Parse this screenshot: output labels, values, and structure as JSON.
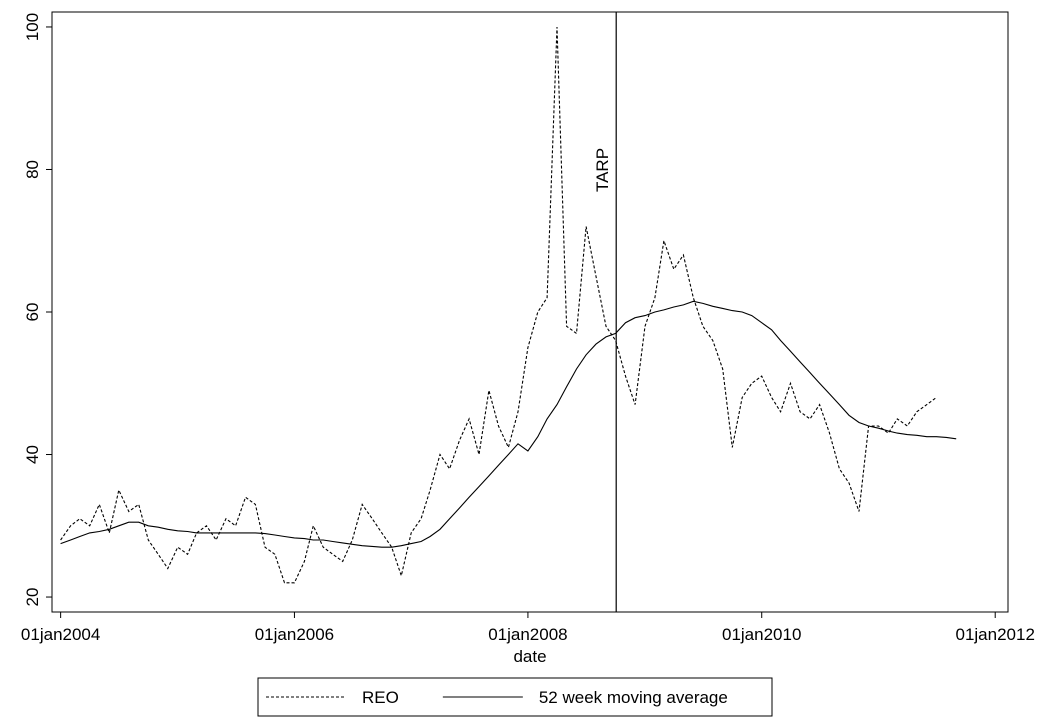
{
  "chart_data": {
    "type": "line",
    "x_label": "date",
    "x": [
      "2004-01-01",
      "2004-02-01",
      "2004-03-01",
      "2004-04-01",
      "2004-05-01",
      "2004-06-01",
      "2004-07-01",
      "2004-08-01",
      "2004-09-01",
      "2004-10-01",
      "2004-11-01",
      "2004-12-01",
      "2005-01-01",
      "2005-02-01",
      "2005-03-01",
      "2005-04-01",
      "2005-05-01",
      "2005-06-01",
      "2005-07-01",
      "2005-08-01",
      "2005-09-01",
      "2005-10-01",
      "2005-11-01",
      "2005-12-01",
      "2006-01-01",
      "2006-02-01",
      "2006-03-01",
      "2006-04-01",
      "2006-05-01",
      "2006-06-01",
      "2006-07-01",
      "2006-08-01",
      "2006-09-01",
      "2006-10-01",
      "2006-11-01",
      "2006-12-01",
      "2007-01-01",
      "2007-02-01",
      "2007-03-01",
      "2007-04-01",
      "2007-05-01",
      "2007-06-01",
      "2007-07-01",
      "2007-08-01",
      "2007-09-01",
      "2007-10-01",
      "2007-11-01",
      "2007-12-01",
      "2008-01-01",
      "2008-02-01",
      "2008-03-01",
      "2008-04-01",
      "2008-05-01",
      "2008-06-01",
      "2008-07-01",
      "2008-08-01",
      "2008-09-01",
      "2008-10-01",
      "2008-11-01",
      "2008-12-01",
      "2009-01-01",
      "2009-02-01",
      "2009-03-01",
      "2009-04-01",
      "2009-05-01",
      "2009-06-01",
      "2009-07-01",
      "2009-08-01",
      "2009-09-01",
      "2009-10-01",
      "2009-11-01",
      "2009-12-01",
      "2010-01-01",
      "2010-02-01",
      "2010-03-01",
      "2010-04-01",
      "2010-05-01",
      "2010-06-01",
      "2010-07-01",
      "2010-08-01",
      "2010-09-01",
      "2010-10-01",
      "2010-11-01",
      "2010-12-01",
      "2011-01-01",
      "2011-02-01",
      "2011-03-01",
      "2011-04-01",
      "2011-05-01",
      "2011-06-01",
      "2011-07-01",
      "2011-08-01",
      "2011-09-01"
    ],
    "series": [
      {
        "name": "REO",
        "color": "#000000",
        "dash": true,
        "values": [
          28,
          30,
          31,
          30,
          33,
          29,
          35,
          32,
          33,
          28,
          26,
          24,
          27,
          26,
          29,
          30,
          28,
          31,
          30,
          34,
          33,
          27,
          26,
          22,
          22,
          25,
          30,
          27,
          26,
          25,
          28,
          33,
          31,
          29,
          27,
          23,
          29,
          31,
          35,
          40,
          38,
          42,
          45,
          40,
          49,
          44,
          41,
          46,
          55,
          60,
          62,
          100,
          58,
          57,
          72,
          65,
          58,
          56,
          51,
          47,
          58,
          62,
          70,
          66,
          68,
          62,
          58,
          56,
          52,
          41,
          48,
          50,
          51,
          48,
          46,
          50,
          46,
          45,
          47,
          43,
          38,
          36,
          32,
          44,
          44,
          43,
          45,
          44,
          46,
          47,
          48,
          null,
          null
        ]
      },
      {
        "name": "52 week moving average",
        "color": "#000000",
        "dash": false,
        "values": [
          27.5,
          28,
          28.5,
          29,
          29.2,
          29.5,
          30,
          30.5,
          30.5,
          30,
          29.8,
          29.5,
          29.3,
          29.2,
          29,
          29,
          29,
          29,
          29,
          29,
          29,
          28.9,
          28.7,
          28.5,
          28.3,
          28.2,
          28,
          28,
          27.8,
          27.6,
          27.4,
          27.2,
          27.1,
          27,
          27,
          27.2,
          27.5,
          27.8,
          28.5,
          29.5,
          31,
          32.5,
          34,
          35.5,
          37,
          38.5,
          40,
          41.5,
          40.5,
          42.5,
          45,
          47,
          49.5,
          52,
          54,
          55.5,
          56.5,
          57,
          58.5,
          59.2,
          59.5,
          60,
          60.3,
          60.7,
          61,
          61.5,
          61.2,
          60.8,
          60.5,
          60.2,
          60,
          59.5,
          58.5,
          57.5,
          56,
          54.5,
          53,
          51.5,
          50,
          48.5,
          47,
          45.5,
          44.5,
          44,
          43.7,
          43.3,
          43,
          42.8,
          42.7,
          42.5,
          42.5,
          42.4,
          42.2
        ]
      }
    ],
    "xlim": [
      "2003-12-05",
      "2012-02-10"
    ],
    "xticks": [
      {
        "value": "2004-01-01",
        "label": "01jan2004"
      },
      {
        "value": "2006-01-01",
        "label": "01jan2006"
      },
      {
        "value": "2008-01-01",
        "label": "01jan2008"
      },
      {
        "value": "2010-01-01",
        "label": "01jan2010"
      },
      {
        "value": "2012-01-01",
        "label": "01jan2012"
      }
    ],
    "ylim": [
      17.9,
      102.1
    ],
    "yticks": [
      20,
      40,
      60,
      80,
      100
    ],
    "annotation": {
      "x": "2008-10-03",
      "text": "TARP"
    },
    "legend": "bottom"
  }
}
